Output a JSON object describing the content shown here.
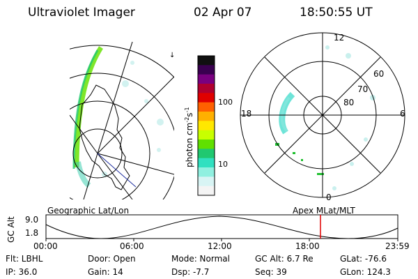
{
  "header": {
    "instrument": "Ultraviolet Imager",
    "date": "02 Apr 07",
    "time": "18:50:55 UT"
  },
  "geo_panel": {
    "label": "Geographic Lat/Lon"
  },
  "colorbar": {
    "unit": "photon cm",
    "exp1": "-2",
    "s": "s",
    "exp2": "-1",
    "ticks": [
      "100",
      "10"
    ],
    "colors": [
      "#101010",
      "#3a0050",
      "#7a0080",
      "#b00030",
      "#e00000",
      "#ff6000",
      "#ffb000",
      "#ffe800",
      "#c8ff00",
      "#60e000",
      "#20c870",
      "#30e0c0",
      "#90f0e0",
      "#d8f4f4",
      "#f4f4f4"
    ]
  },
  "polar_panel": {
    "label": "Apex MLat/MLT",
    "lat_labels": [
      "80",
      "70",
      "60"
    ],
    "mlt_labels": {
      "top": "12",
      "bottom": "0",
      "left": "18",
      "right": "6"
    }
  },
  "timeline": {
    "axis_label": "GC Alt",
    "y_ticks": [
      "9.0",
      "1.8"
    ],
    "x_ticks": [
      "00:00",
      "06:00",
      "12:00",
      "18:00",
      "23:59"
    ],
    "marker_color": "#e00000"
  },
  "status": {
    "filter": "Flt: LBHL",
    "ip": "IP: 36.0",
    "door": "Door: Open",
    "gain": "Gain: 14",
    "mode": "Mode: Normal",
    "dsp": "Dsp:   -7.7",
    "gc_alt": "GC Alt: 6.7 Re",
    "seq": "Seq: 39",
    "glat": "GLat: -76.6",
    "glon": "GLon: 124.3"
  }
}
